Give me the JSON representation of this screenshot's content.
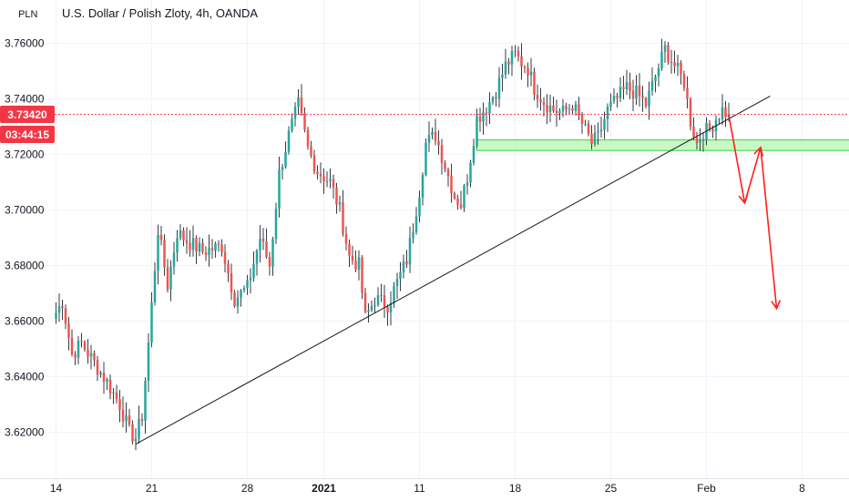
{
  "header": {
    "title": "U.S. Dollar / Polish Zloty, 4h, OANDA",
    "unit": "PLN"
  },
  "price_tag": {
    "price": "3.73420",
    "countdown": "03:44:15",
    "color": "#f23645"
  },
  "colors": {
    "up": "#26a69a",
    "down": "#ef5350",
    "wick": "#363a45",
    "zone_fill": "#b6f5b0",
    "zone_stroke": "#3ad13a",
    "trendline": "#131722",
    "arrows": "#ff1f1f"
  },
  "chart_data": {
    "type": "candlestick",
    "symbol": "USDPLN",
    "interval": "4h",
    "source": "OANDA",
    "y_ticks": [
      3.62,
      3.64,
      3.66,
      3.68,
      3.7,
      3.72,
      3.74,
      3.76
    ],
    "y_tick_labels": [
      "3.62000",
      "3.64000",
      "3.66000",
      "3.68000",
      "3.70000",
      "3.72000",
      "3.74000",
      "3.76000"
    ],
    "ylim": [
      3.5966,
      3.7787
    ],
    "x_ticks": [
      {
        "label": "14",
        "bar": 0
      },
      {
        "label": "21",
        "bar": 30
      },
      {
        "label": "28",
        "bar": 60
      },
      {
        "label": "2021",
        "bar": 84
      },
      {
        "label": "11",
        "bar": 114
      },
      {
        "label": "18",
        "bar": 144
      },
      {
        "label": "25",
        "bar": 174
      },
      {
        "label": "Feb",
        "bar": 204
      },
      {
        "label": "8",
        "bar": 234
      }
    ],
    "x_tick_bold": [
      "2021"
    ],
    "last_price": 3.7342,
    "anchors": [
      [
        0,
        3.663
      ],
      [
        2,
        3.667
      ],
      [
        5,
        3.648
      ],
      [
        8,
        3.652
      ],
      [
        12,
        3.645
      ],
      [
        16,
        3.638
      ],
      [
        20,
        3.63
      ],
      [
        23,
        3.62
      ],
      [
        25,
        3.618
      ],
      [
        27,
        3.626
      ],
      [
        29,
        3.652
      ],
      [
        32,
        3.693
      ],
      [
        35,
        3.673
      ],
      [
        38,
        3.692
      ],
      [
        41,
        3.689
      ],
      [
        46,
        3.685
      ],
      [
        52,
        3.687
      ],
      [
        56,
        3.668
      ],
      [
        60,
        3.672
      ],
      [
        64,
        3.69
      ],
      [
        67,
        3.68
      ],
      [
        70,
        3.713
      ],
      [
        73,
        3.727
      ],
      [
        76,
        3.738
      ],
      [
        79,
        3.722
      ],
      [
        82,
        3.714
      ],
      [
        86,
        3.71
      ],
      [
        89,
        3.7
      ],
      [
        92,
        3.683
      ],
      [
        95,
        3.68
      ],
      [
        97,
        3.661
      ],
      [
        100,
        3.668
      ],
      [
        104,
        3.666
      ],
      [
        107,
        3.674
      ],
      [
        110,
        3.682
      ],
      [
        112,
        3.694
      ],
      [
        114,
        3.707
      ],
      [
        116,
        3.724
      ],
      [
        119,
        3.727
      ],
      [
        122,
        3.716
      ],
      [
        125,
        3.705
      ],
      [
        127,
        3.702
      ],
      [
        129,
        3.712
      ],
      [
        132,
        3.733
      ],
      [
        135,
        3.737
      ],
      [
        138,
        3.743
      ],
      [
        141,
        3.752
      ],
      [
        144,
        3.756
      ],
      [
        146,
        3.753
      ],
      [
        148,
        3.751
      ],
      [
        150,
        3.744
      ],
      [
        153,
        3.739
      ],
      [
        156,
        3.736
      ],
      [
        159,
        3.735
      ],
      [
        162,
        3.738
      ],
      [
        165,
        3.731
      ],
      [
        168,
        3.724
      ],
      [
        170,
        3.726
      ],
      [
        173,
        3.736
      ],
      [
        176,
        3.74
      ],
      [
        179,
        3.744
      ],
      [
        182,
        3.742
      ],
      [
        185,
        3.738
      ],
      [
        188,
        3.748
      ],
      [
        191,
        3.758
      ],
      [
        194,
        3.752
      ],
      [
        197,
        3.746
      ],
      [
        199,
        3.732
      ],
      [
        201,
        3.724
      ],
      [
        203,
        3.728
      ],
      [
        205,
        3.729
      ],
      [
        207,
        3.733
      ],
      [
        209,
        3.736
      ],
      [
        211,
        3.734
      ]
    ],
    "trendline": [
      [
        25,
        3.6157
      ],
      [
        224,
        3.741
      ]
    ],
    "support_zone": {
      "bar_start": 132,
      "bar_end": 249,
      "y_low": 3.7214,
      "y_high": 3.7252
    },
    "projection": [
      [
        211,
        3.7342
      ],
      [
        216,
        3.7025
      ],
      [
        221,
        3.7225
      ],
      [
        226,
        3.6645
      ]
    ]
  }
}
